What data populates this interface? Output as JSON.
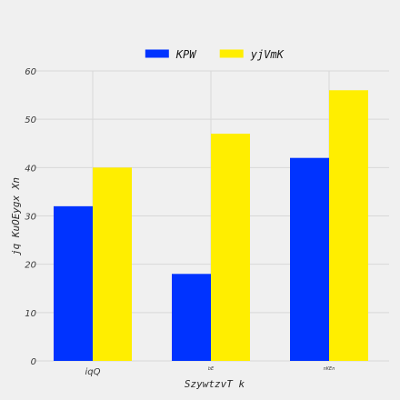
{
  "chart_data": {
    "type": "bar",
    "title": "",
    "xlabel": "SzywtzvT  k",
    "ylabel": "jq KuOEygx Xn",
    "categories": [
      "iqQ",
      "bE",
      "nKEn"
    ],
    "category_label_sizes": [
      "normal",
      "tiny",
      "tiny"
    ],
    "series": [
      {
        "name": "KPW",
        "values": [
          32,
          18,
          42
        ],
        "color": "#0033ff"
      },
      {
        "name": "yjVmK",
        "values": [
          40,
          47,
          56
        ],
        "color": "#ffee00"
      }
    ],
    "ylim": [
      0,
      60
    ],
    "yticks": [
      "0",
      "10",
      "20",
      "30",
      "40",
      "50",
      "60"
    ],
    "grid": true,
    "legend_position": "top-center",
    "background": "#f0f0f0",
    "grid_color": "#d8d8d8"
  }
}
